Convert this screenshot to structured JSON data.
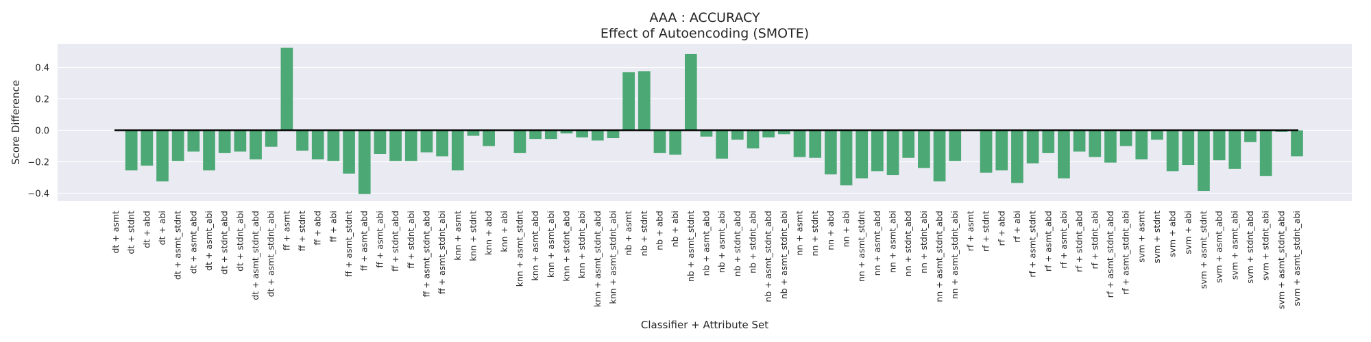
{
  "chart_data": {
    "type": "bar",
    "title": "AAA : ACCURACY",
    "subtitle": "Effect of Autoencoding (SMOTE)",
    "xlabel": "Classifier + Attribute Set",
    "ylabel": "Score Difference",
    "ylim": [
      -0.45,
      0.55
    ],
    "yticks": [
      -0.4,
      -0.2,
      0.0,
      0.2,
      0.4
    ],
    "ytick_labels": [
      "−0.4",
      "−0.2",
      "0.0",
      "0.2",
      "0.4"
    ],
    "grid": true,
    "legend": "none",
    "colors": {
      "bar": "#4ca874",
      "plot_bg": "#eaeaf2",
      "grid": "#ffffff",
      "zero_line": "#000000",
      "text": "#262626"
    },
    "categories": [
      "dt + asmt",
      "dt + stdnt",
      "dt + abd",
      "dt + abi",
      "dt + asmt_stdnt",
      "dt + asmt_abd",
      "dt + asmt_abi",
      "dt + stdnt_abd",
      "dt + stdnt_abi",
      "dt + asmt_stdnt_abd",
      "dt + asmt_stdnt_abi",
      "ff + asmt",
      "ff + stdnt",
      "ff + abd",
      "ff + abi",
      "ff + asmt_stdnt",
      "ff + asmt_abd",
      "ff + asmt_abi",
      "ff + stdnt_abd",
      "ff + stdnt_abi",
      "ff + asmt_stdnt_abd",
      "ff + asmt_stdnt_abi",
      "knn + asmt",
      "knn + stdnt",
      "knn + abd",
      "knn + abi",
      "knn + asmt_stdnt",
      "knn + asmt_abd",
      "knn + asmt_abi",
      "knn + stdnt_abd",
      "knn + stdnt_abi",
      "knn + asmt_stdnt_abd",
      "knn + asmt_stdnt_abi",
      "nb + asmt",
      "nb + stdnt",
      "nb + abd",
      "nb + abi",
      "nb + asmt_stdnt",
      "nb + asmt_abd",
      "nb + asmt_abi",
      "nb + stdnt_abd",
      "nb + stdnt_abi",
      "nb + asmt_stdnt_abd",
      "nb + asmt_stdnt_abi",
      "nn + asmt",
      "nn + stdnt",
      "nn + abd",
      "nn + abi",
      "nn + asmt_stdnt",
      "nn + asmt_abd",
      "nn + asmt_abi",
      "nn + stdnt_abd",
      "nn + stdnt_abi",
      "nn + asmt_stdnt_abd",
      "nn + asmt_stdnt_abi",
      "rf + asmt",
      "rf + stdnt",
      "rf + abd",
      "rf + abi",
      "rf + asmt_stdnt",
      "rf + asmt_abd",
      "rf + asmt_abi",
      "rf + stdnt_abd",
      "rf + stdnt_abi",
      "rf + asmt_stdnt_abd",
      "rf + asmt_stdnt_abi",
      "svm + asmt",
      "svm + stdnt",
      "svm + abd",
      "svm + abi",
      "svm + asmt_stdnt",
      "svm + asmt_abd",
      "svm + asmt_abi",
      "svm + stdnt_abd",
      "svm + stdnt_abi",
      "svm + asmt_stdnt_abd",
      "svm + asmt_stdnt_abi"
    ],
    "values": [
      0.0,
      -0.255,
      -0.225,
      -0.325,
      -0.195,
      -0.135,
      -0.255,
      -0.145,
      -0.135,
      -0.185,
      -0.105,
      0.525,
      -0.13,
      -0.185,
      -0.195,
      -0.275,
      -0.405,
      -0.15,
      -0.195,
      -0.195,
      -0.14,
      -0.165,
      -0.255,
      -0.035,
      -0.1,
      0.0,
      -0.145,
      -0.055,
      -0.055,
      -0.02,
      -0.045,
      -0.065,
      -0.05,
      0.37,
      0.375,
      -0.145,
      -0.155,
      0.485,
      -0.04,
      -0.18,
      -0.06,
      -0.115,
      -0.045,
      -0.025,
      -0.17,
      -0.175,
      -0.28,
      -0.35,
      -0.305,
      -0.26,
      -0.285,
      -0.175,
      -0.24,
      -0.325,
      -0.195,
      0.0,
      -0.27,
      -0.255,
      -0.335,
      -0.21,
      -0.145,
      -0.305,
      -0.135,
      -0.17,
      -0.205,
      -0.1,
      -0.185,
      -0.06,
      -0.26,
      -0.22,
      -0.385,
      -0.19,
      -0.245,
      -0.075,
      -0.29,
      -0.01,
      -0.165
    ]
  }
}
